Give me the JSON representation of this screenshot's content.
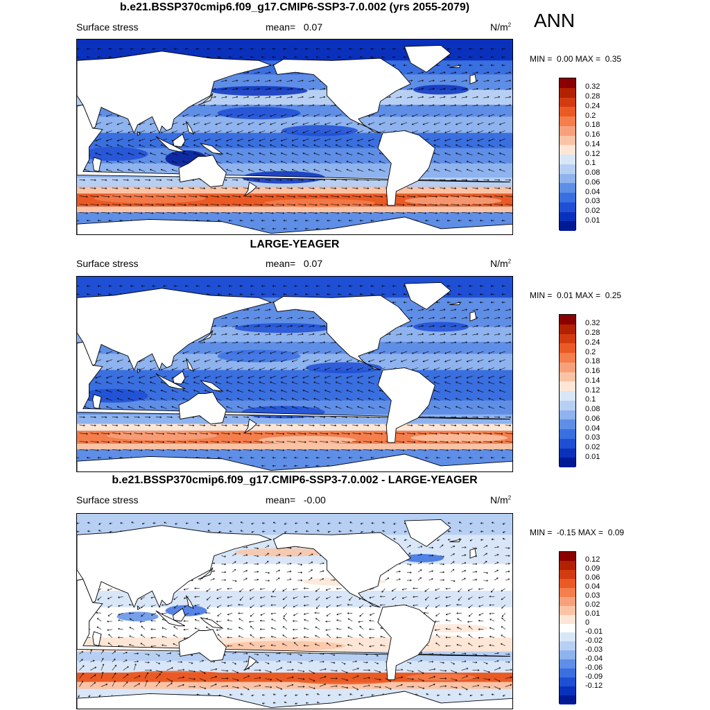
{
  "season": "ANN",
  "panels": [
    {
      "title": "b.e21.BSSP370cmip6.f09_g17.CMIP6-SSP3-7.0.002 (yrs 2055-2079)",
      "variable": "Surface stress",
      "mean_label": "mean=",
      "mean_value": "0.07",
      "units": "N/m",
      "units_sup": "2",
      "min_label": "MIN =",
      "min_value": "0.00",
      "max_label": "MAX =",
      "max_value": "0.35",
      "colorbar_labels": [
        "0.32",
        "0.28",
        "0.24",
        "0.2",
        "0.18",
        "0.16",
        "0.14",
        "0.12",
        "0.1",
        "0.08",
        "0.06",
        "0.04",
        "0.03",
        "0.02",
        "0.01"
      ],
      "colorbar_colors": [
        "#8b0000",
        "#b22200",
        "#d23a10",
        "#ea5a24",
        "#f47e4c",
        "#f7a17c",
        "#fbc3a5",
        "#fde6d6",
        "#d8e6f8",
        "#b7cff3",
        "#8eb3ee",
        "#5f8ee6",
        "#3a6fe0",
        "#1f4fd4",
        "#0a31bc",
        "#001a96"
      ]
    },
    {
      "title": "LARGE-YEAGER",
      "variable": "Surface stress",
      "mean_label": "mean=",
      "mean_value": "0.07",
      "units": "N/m",
      "units_sup": "2",
      "min_label": "MIN =",
      "min_value": "0.01",
      "max_label": "MAX =",
      "max_value": "0.25",
      "colorbar_labels": [
        "0.32",
        "0.28",
        "0.24",
        "0.2",
        "0.18",
        "0.16",
        "0.14",
        "0.12",
        "0.1",
        "0.08",
        "0.06",
        "0.04",
        "0.03",
        "0.02",
        "0.01"
      ],
      "colorbar_colors": [
        "#8b0000",
        "#b22200",
        "#d23a10",
        "#ea5a24",
        "#f47e4c",
        "#f7a17c",
        "#fbc3a5",
        "#fde6d6",
        "#d8e6f8",
        "#b7cff3",
        "#8eb3ee",
        "#5f8ee6",
        "#3a6fe0",
        "#1f4fd4",
        "#0a31bc",
        "#001a96"
      ]
    },
    {
      "title": "b.e21.BSSP370cmip6.f09_g17.CMIP6-SSP3-7.0.002 - LARGE-YEAGER",
      "variable": "Surface stress",
      "mean_label": "mean=",
      "mean_value": "-0.00",
      "units": "N/m",
      "units_sup": "2",
      "min_label": "MIN =",
      "min_value": "-0.15",
      "max_label": "MAX =",
      "max_value": "0.09",
      "colorbar_labels": [
        "0.12",
        "0.09",
        "0.06",
        "0.04",
        "0.03",
        "0.02",
        "0.01",
        "0",
        "-0.01",
        "-0.02",
        "-0.03",
        "-0.04",
        "-0.06",
        "-0.09",
        "-0.12"
      ],
      "colorbar_colors": [
        "#8b0000",
        "#b22200",
        "#d23a10",
        "#ea5a24",
        "#f47e4c",
        "#f7a17c",
        "#fbc3a5",
        "#fde6d6",
        "#ffffff",
        "#d8e6f8",
        "#b7cff3",
        "#8eb3ee",
        "#5f8ee6",
        "#3a6fe0",
        "#1f4fd4",
        "#0a31bc",
        "#001a96"
      ]
    }
  ],
  "chart_data": [
    {
      "type": "heatmap",
      "title": "b.e21.BSSP370cmip6.f09_g17.CMIP6-SSP3-7.0.002 (yrs 2055-2079)",
      "field": "Surface stress",
      "units": "N/m2",
      "mean": 0.07,
      "min": 0.0,
      "max": 0.35,
      "contour_levels": [
        0.01,
        0.02,
        0.03,
        0.04,
        0.06,
        0.08,
        0.1,
        0.12,
        0.14,
        0.16,
        0.18,
        0.2,
        0.24,
        0.28,
        0.32
      ]
    },
    {
      "type": "heatmap",
      "title": "LARGE-YEAGER",
      "field": "Surface stress",
      "units": "N/m2",
      "mean": 0.07,
      "min": 0.01,
      "max": 0.25,
      "contour_levels": [
        0.01,
        0.02,
        0.03,
        0.04,
        0.06,
        0.08,
        0.1,
        0.12,
        0.14,
        0.16,
        0.18,
        0.2,
        0.24,
        0.28,
        0.32
      ]
    },
    {
      "type": "heatmap",
      "title": "b.e21.BSSP370cmip6.f09_g17.CMIP6-SSP3-7.0.002 - LARGE-YEAGER",
      "field": "Surface stress",
      "units": "N/m2",
      "mean": -0.0,
      "min": -0.15,
      "max": 0.09,
      "contour_levels": [
        -0.12,
        -0.09,
        -0.06,
        -0.04,
        -0.03,
        -0.02,
        -0.01,
        0,
        0.01,
        0.02,
        0.03,
        0.04,
        0.06,
        0.09,
        0.12
      ]
    }
  ]
}
